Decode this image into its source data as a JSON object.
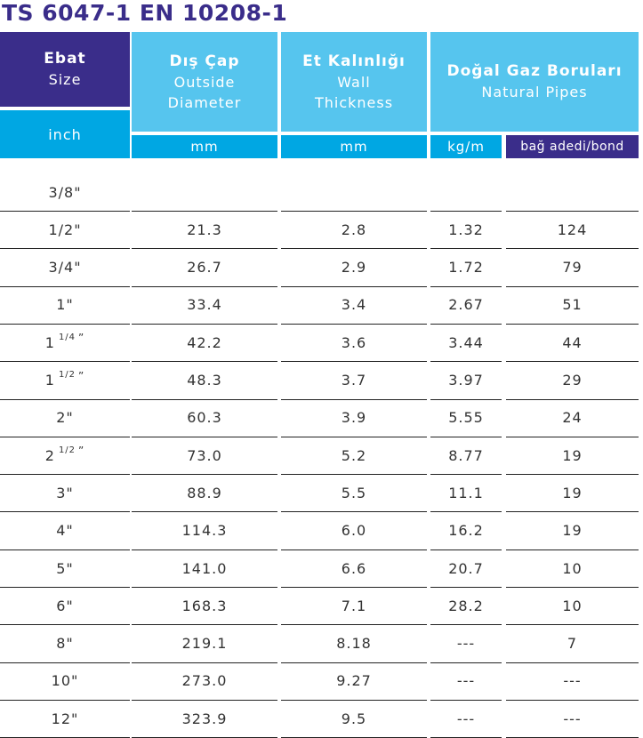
{
  "title": "TS 6047-1 EN 10208-1",
  "header": {
    "size": {
      "tr": "Ebat",
      "en": "Size",
      "unit": "inch"
    },
    "od": {
      "tr": "Dış Çap",
      "en1": "Outside",
      "en2": "Diameter",
      "unit": "mm"
    },
    "wt": {
      "tr": "Et Kalınlığı",
      "en1": "Wall",
      "en2": "Thickness",
      "unit": "mm"
    },
    "gas": {
      "tr": "Doğal Gaz Boruları",
      "en": "Natural Pipes",
      "unit1": "kg/m",
      "unit2": "bağ adedi/bond"
    }
  },
  "colors": {
    "purple": "#3a2d8a",
    "cyan_light": "#56c5ee",
    "cyan_dark": "#00a7e3"
  },
  "rows": [
    {
      "size": "3/8\"",
      "size_base": "",
      "size_sup": "",
      "od": "",
      "wt": "",
      "kg": "",
      "bond": ""
    },
    {
      "size": "1/2\"",
      "size_base": "",
      "size_sup": "",
      "od": "21.3",
      "wt": "2.8",
      "kg": "1.32",
      "bond": "124"
    },
    {
      "size": "3/4\"",
      "size_base": "",
      "size_sup": "",
      "od": "26.7",
      "wt": "2.9",
      "kg": "1.72",
      "bond": "79"
    },
    {
      "size": "1\"",
      "size_base": "",
      "size_sup": "",
      "od": "33.4",
      "wt": "3.4",
      "kg": "2.67",
      "bond": "51"
    },
    {
      "size": "",
      "size_base": "1",
      "size_sup": "1/4",
      "od": "42.2",
      "wt": "3.6",
      "kg": "3.44",
      "bond": "44"
    },
    {
      "size": "",
      "size_base": "1",
      "size_sup": "1/2",
      "od": "48.3",
      "wt": "3.7",
      "kg": "3.97",
      "bond": "29"
    },
    {
      "size": "2\"",
      "size_base": "",
      "size_sup": "",
      "od": "60.3",
      "wt": "3.9",
      "kg": "5.55",
      "bond": "24"
    },
    {
      "size": "",
      "size_base": "2",
      "size_sup": "1/2",
      "od": "73.0",
      "wt": "5.2",
      "kg": "8.77",
      "bond": "19"
    },
    {
      "size": "3\"",
      "size_base": "",
      "size_sup": "",
      "od": "88.9",
      "wt": "5.5",
      "kg": "11.1",
      "bond": "19"
    },
    {
      "size": "4\"",
      "size_base": "",
      "size_sup": "",
      "od": "114.3",
      "wt": "6.0",
      "kg": "16.2",
      "bond": "19"
    },
    {
      "size": "5\"",
      "size_base": "",
      "size_sup": "",
      "od": "141.0",
      "wt": "6.6",
      "kg": "20.7",
      "bond": "10"
    },
    {
      "size": "6\"",
      "size_base": "",
      "size_sup": "",
      "od": "168.3",
      "wt": "7.1",
      "kg": "28.2",
      "bond": "10"
    },
    {
      "size": "8\"",
      "size_base": "",
      "size_sup": "",
      "od": "219.1",
      "wt": "8.18",
      "kg": "---",
      "bond": "7"
    },
    {
      "size": "10\"",
      "size_base": "",
      "size_sup": "",
      "od": "273.0",
      "wt": "9.27",
      "kg": "---",
      "bond": "---"
    },
    {
      "size": "12\"",
      "size_base": "",
      "size_sup": "",
      "od": "323.9",
      "wt": "9.5",
      "kg": "---",
      "bond": "---"
    }
  ]
}
